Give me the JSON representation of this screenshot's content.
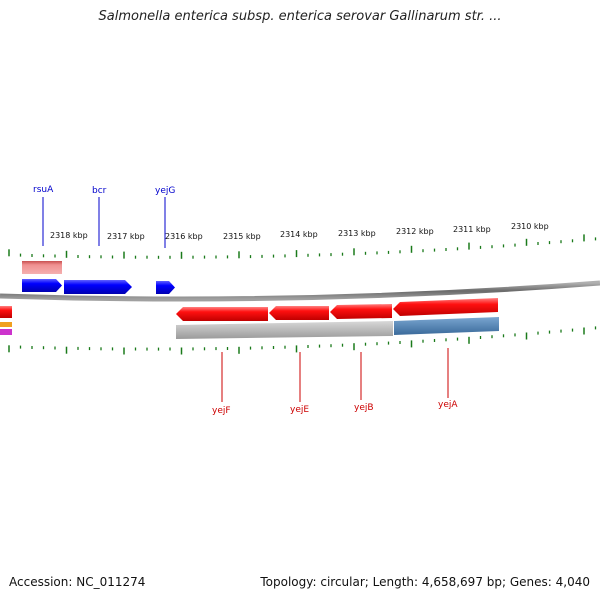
{
  "header": {
    "title": "Salmonella enterica subsp. enterica serovar Gallinarum str. ..."
  },
  "footer": {
    "accession": "Accession: NC_011274",
    "summary": "Topology: circular; Length: 4,658,697 bp; Genes: 4,040"
  },
  "scale": {
    "unit": "kbp",
    "labels": [
      "2318 kbp",
      "2317 kbp",
      "2316 kbp",
      "2315 kbp",
      "2314 kbp",
      "2313 kbp",
      "2312 kbp",
      "2311 kbp",
      "2310 kbp"
    ]
  },
  "genes": {
    "forward": [
      {
        "name": "rsuA",
        "color": "#0000cc"
      },
      {
        "name": "bcr",
        "color": "#0000cc"
      },
      {
        "name": "yejG",
        "color": "#0000cc"
      }
    ],
    "reverse": [
      {
        "name": "yejF",
        "color": "#cc0000"
      },
      {
        "name": "yejE",
        "color": "#cc0000"
      },
      {
        "name": "yejB",
        "color": "#cc0000"
      },
      {
        "name": "yejA",
        "color": "#cc0000"
      }
    ]
  },
  "colors": {
    "forward_gene": "#0000ff",
    "reverse_gene": "#ff0000",
    "backbone": "#7a7a7a",
    "tick": "#1a7a1a",
    "pseudo_feature": "#f09090",
    "secondary_track": "#b0b0b0",
    "secondary_highlight": "#4a80b4"
  }
}
